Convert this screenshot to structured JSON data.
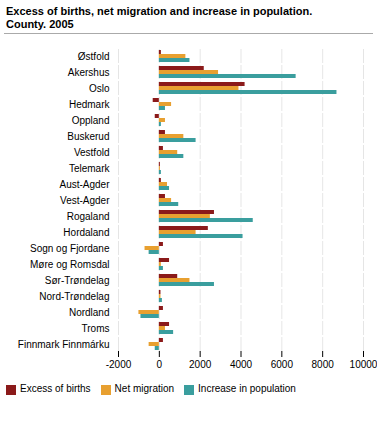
{
  "chart_data": {
    "type": "bar",
    "orientation": "horizontal",
    "title": "Excess of births, net migration and increase in population.",
    "subtitle": "County. 2005",
    "categories": [
      "Østfold",
      "Akershus",
      "Oslo",
      "Hedmark",
      "Oppland",
      "Buskerud",
      "Vestfold",
      "Telemark",
      "Aust-Agder",
      "Vest-Agder",
      "Rogaland",
      "Hordaland",
      "Sogn og Fjordane",
      "Møre og Romsdal",
      "Sør-Trøndelag",
      "Nord-Trøndelag",
      "Nordland",
      "Troms",
      "Finnmark Finnmárku"
    ],
    "series": [
      {
        "name": "Excess of births",
        "color": "#8B1A1A",
        "values": [
          100,
          2200,
          4200,
          -300,
          -200,
          300,
          200,
          50,
          100,
          300,
          2700,
          2400,
          200,
          500,
          900,
          80,
          200,
          500,
          200
        ]
      },
      {
        "name": "Net migration",
        "color": "#E8A030",
        "values": [
          1300,
          2900,
          3900,
          600,
          300,
          1200,
          900,
          50,
          400,
          600,
          2500,
          1800,
          -700,
          100,
          1500,
          80,
          -1000,
          300,
          -500
        ]
      },
      {
        "name": "Increase in population",
        "color": "#3A9E9E",
        "values": [
          1500,
          6700,
          8700,
          300,
          100,
          1800,
          1200,
          100,
          500,
          950,
          4600,
          4100,
          -500,
          200,
          2700,
          150,
          -900,
          700,
          -200
        ]
      }
    ],
    "xlim": [
      -2000,
      10000
    ],
    "xticks": [
      -2000,
      0,
      2000,
      4000,
      6000,
      8000,
      10000
    ],
    "grid": true,
    "legend": "bottom"
  }
}
